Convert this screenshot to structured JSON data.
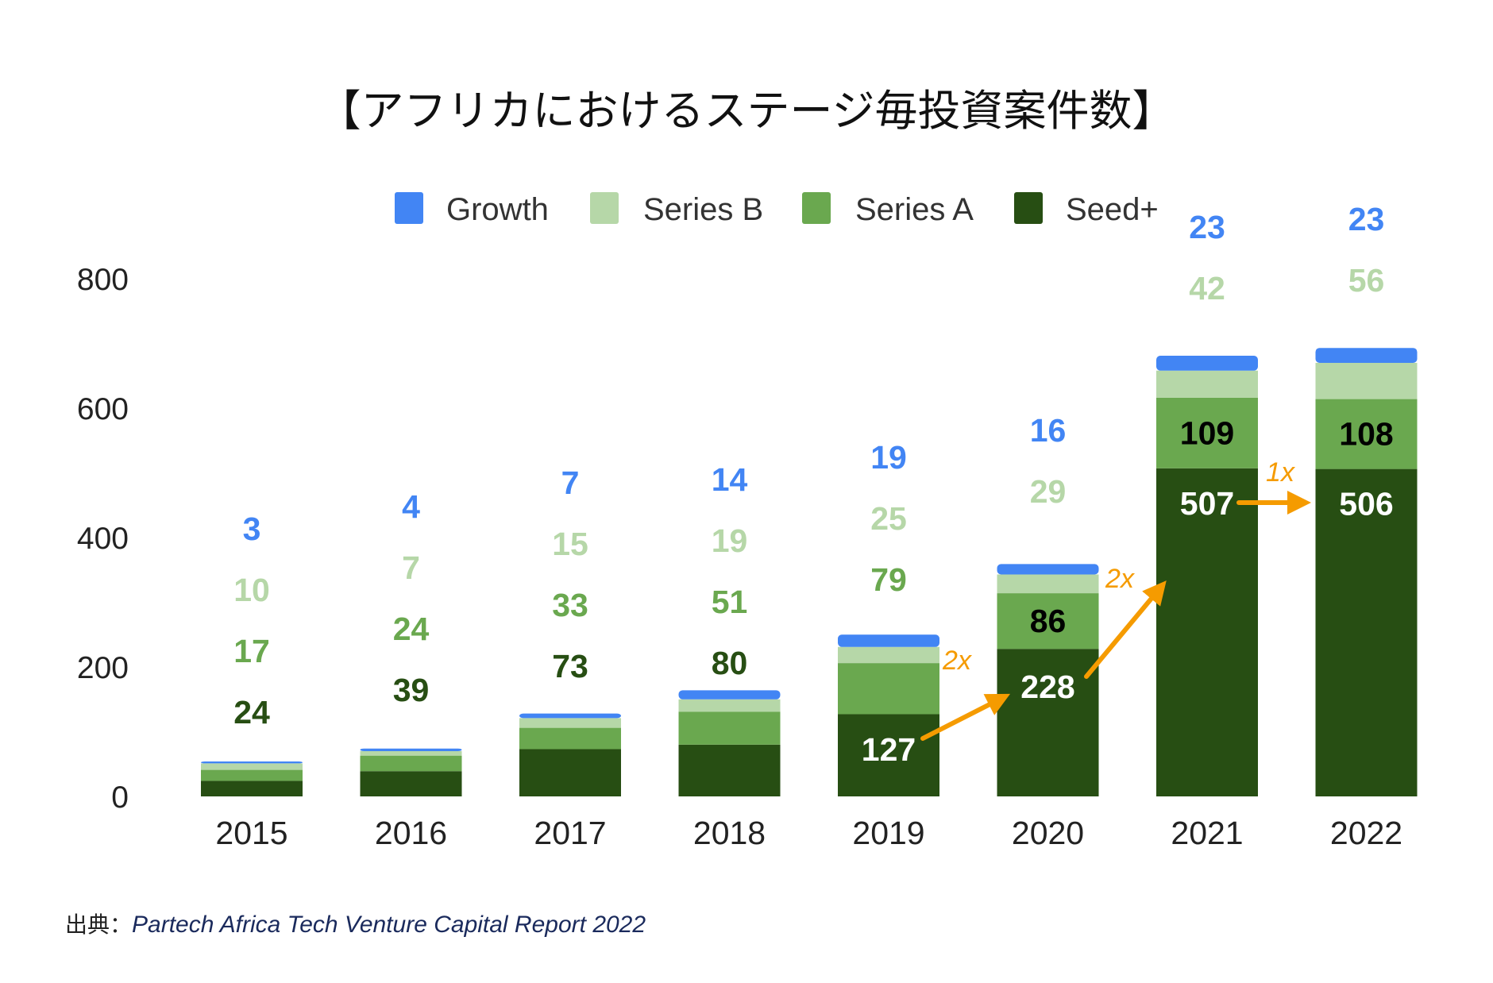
{
  "chart_data": {
    "type": "bar",
    "stacked": true,
    "title": "【アフリカにおけるステージ毎投資案件数】",
    "categories": [
      "2015",
      "2016",
      "2017",
      "2018",
      "2019",
      "2020",
      "2021",
      "2022"
    ],
    "series": [
      {
        "name": "Seed+",
        "color": "#274e13",
        "values": [
          24,
          39,
          73,
          80,
          127,
          228,
          507,
          506
        ]
      },
      {
        "name": "Series A",
        "color": "#6aa84f",
        "values": [
          17,
          24,
          33,
          51,
          79,
          86,
          109,
          108
        ]
      },
      {
        "name": "Series B",
        "color": "#b6d7a8",
        "values": [
          10,
          7,
          15,
          19,
          25,
          29,
          42,
          56
        ]
      },
      {
        "name": "Growth",
        "color": "#4285f4",
        "values": [
          3,
          4,
          7,
          14,
          19,
          16,
          23,
          23
        ]
      }
    ],
    "legend": {
      "order": [
        "Growth",
        "Series B",
        "Series A",
        "Seed+"
      ],
      "placement": "top"
    },
    "ylim": [
      0,
      800
    ],
    "yticks": [
      "0",
      "200",
      "400",
      "600",
      "800"
    ],
    "xlabel": "",
    "ylabel": "",
    "grid": false,
    "annotations": [
      {
        "text": "2x",
        "from": "2019",
        "to": "2020"
      },
      {
        "text": "2x",
        "from": "2020",
        "to": "2021"
      },
      {
        "text": "1x",
        "from": "2021",
        "to": "2022"
      }
    ],
    "source": {
      "prefix": "出典：",
      "text": "Partech Africa Tech Venture Capital Report 2022"
    }
  },
  "colors": {
    "arrow": "#f59b00",
    "label_dark_on_white": "#274e13",
    "label_dark_on_green": "#000000",
    "label_on_seed_bar": "#ffffff"
  }
}
